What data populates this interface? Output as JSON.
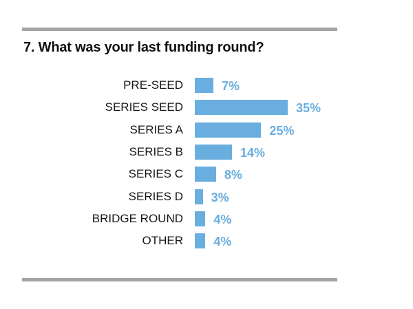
{
  "title": "7. What was your last funding round?",
  "colors": {
    "bar": "#6aaee0",
    "value_text": "#6aaee0",
    "rule": "#a3a6a5",
    "title": "#111111"
  },
  "chart_data": {
    "type": "bar",
    "orientation": "horizontal",
    "title": "7. What was your last funding round?",
    "xlabel": "",
    "ylabel": "",
    "categories": [
      "PRE-SEED",
      "SERIES SEED",
      "SERIES A",
      "SERIES B",
      "SERIES C",
      "SERIES D",
      "BRIDGE ROUND",
      "OTHER"
    ],
    "values": [
      7,
      35,
      25,
      14,
      8,
      3,
      4,
      4
    ],
    "value_labels": [
      "7%",
      "35%",
      "25%",
      "14%",
      "8%",
      "3%",
      "4%",
      "4%"
    ],
    "unit": "%",
    "grid": false,
    "legend": null
  },
  "rows": [
    {
      "label": "PRE-SEED",
      "value": 7,
      "value_label": "7%"
    },
    {
      "label": "SERIES SEED",
      "value": 35,
      "value_label": "35%"
    },
    {
      "label": "SERIES A",
      "value": 25,
      "value_label": "25%"
    },
    {
      "label": "SERIES B",
      "value": 14,
      "value_label": "14%"
    },
    {
      "label": "SERIES C",
      "value": 8,
      "value_label": "8%"
    },
    {
      "label": "SERIES D",
      "value": 3,
      "value_label": "3%"
    },
    {
      "label": "BRIDGE ROUND",
      "value": 4,
      "value_label": "4%"
    },
    {
      "label": "OTHER",
      "value": 4,
      "value_label": "4%"
    }
  ]
}
